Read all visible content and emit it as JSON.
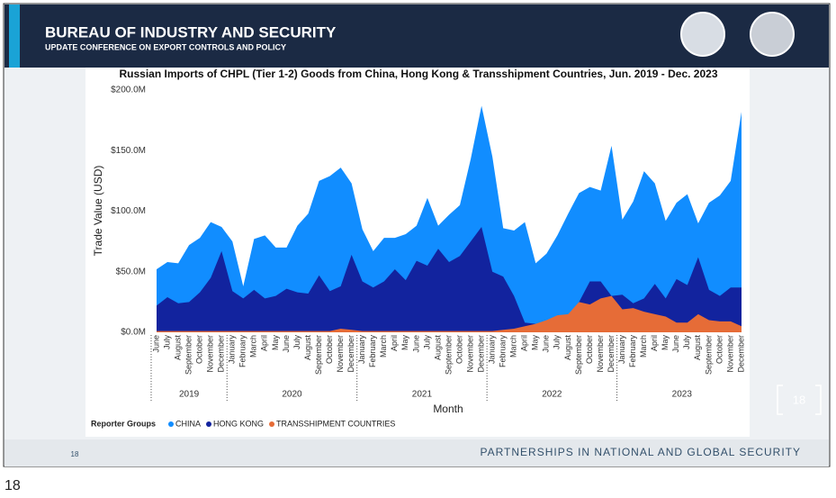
{
  "slide": {
    "header_title": "BUREAU OF INDUSTRY AND SECURITY",
    "header_subtitle": "UPDATE CONFERENCE ON EXPORT CONTROLS AND POLICY",
    "page_number": "18",
    "footer": "PARTNERSHIPS IN NATIONAL AND GLOBAL SECURITY",
    "badge": "18",
    "caption": "18"
  },
  "chart_data": {
    "type": "area",
    "title": "Russian Imports of CHPL (Tier 1-2) Goods from China, Hong Kong & Transshipment Countries, Jun. 2019 - Dec. 2023",
    "x_label": "Month",
    "y_label": "Trade Value (USD)",
    "legend_title": "Reporter Groups",
    "categories": [
      {
        "year": "2019",
        "month": "June"
      },
      {
        "year": "2019",
        "month": "July"
      },
      {
        "year": "2019",
        "month": "August"
      },
      {
        "year": "2019",
        "month": "September"
      },
      {
        "year": "2019",
        "month": "October"
      },
      {
        "year": "2019",
        "month": "November"
      },
      {
        "year": "2019",
        "month": "December"
      },
      {
        "year": "2020",
        "month": "January"
      },
      {
        "year": "2020",
        "month": "February"
      },
      {
        "year": "2020",
        "month": "March"
      },
      {
        "year": "2020",
        "month": "April"
      },
      {
        "year": "2020",
        "month": "May"
      },
      {
        "year": "2020",
        "month": "June"
      },
      {
        "year": "2020",
        "month": "July"
      },
      {
        "year": "2020",
        "month": "August"
      },
      {
        "year": "2020",
        "month": "September"
      },
      {
        "year": "2020",
        "month": "October"
      },
      {
        "year": "2020",
        "month": "November"
      },
      {
        "year": "2020",
        "month": "December"
      },
      {
        "year": "2021",
        "month": "January"
      },
      {
        "year": "2021",
        "month": "February"
      },
      {
        "year": "2021",
        "month": "March"
      },
      {
        "year": "2021",
        "month": "April"
      },
      {
        "year": "2021",
        "month": "May"
      },
      {
        "year": "2021",
        "month": "June"
      },
      {
        "year": "2021",
        "month": "July"
      },
      {
        "year": "2021",
        "month": "August"
      },
      {
        "year": "2021",
        "month": "September"
      },
      {
        "year": "2021",
        "month": "October"
      },
      {
        "year": "2021",
        "month": "November"
      },
      {
        "year": "2021",
        "month": "December"
      },
      {
        "year": "2022",
        "month": "January"
      },
      {
        "year": "2022",
        "month": "February"
      },
      {
        "year": "2022",
        "month": "March"
      },
      {
        "year": "2022",
        "month": "April"
      },
      {
        "year": "2022",
        "month": "May"
      },
      {
        "year": "2022",
        "month": "June"
      },
      {
        "year": "2022",
        "month": "July"
      },
      {
        "year": "2022",
        "month": "August"
      },
      {
        "year": "2022",
        "month": "September"
      },
      {
        "year": "2022",
        "month": "October"
      },
      {
        "year": "2022",
        "month": "November"
      },
      {
        "year": "2022",
        "month": "December"
      },
      {
        "year": "2023",
        "month": "January"
      },
      {
        "year": "2023",
        "month": "February"
      },
      {
        "year": "2023",
        "month": "March"
      },
      {
        "year": "2023",
        "month": "April"
      },
      {
        "year": "2023",
        "month": "May"
      },
      {
        "year": "2023",
        "month": "June"
      },
      {
        "year": "2023",
        "month": "July"
      },
      {
        "year": "2023",
        "month": "August"
      },
      {
        "year": "2023",
        "month": "September"
      },
      {
        "year": "2023",
        "month": "October"
      },
      {
        "year": "2023",
        "month": "November"
      },
      {
        "year": "2023",
        "month": "December"
      }
    ],
    "series": [
      {
        "name": "CHINA",
        "color": "#118dff",
        "values": [
          52,
          58,
          57,
          72,
          78,
          91,
          87,
          75,
          38,
          77,
          80,
          70,
          70,
          88,
          98,
          125,
          129,
          136,
          123,
          85,
          67,
          78,
          78,
          81,
          88,
          111,
          88,
          97,
          105,
          143,
          187,
          145,
          86,
          84,
          91,
          57,
          65,
          80,
          98,
          115,
          120,
          117,
          154,
          93,
          108,
          133,
          123,
          92,
          107,
          114,
          90,
          107,
          113,
          125,
          182
        ]
      },
      {
        "name": "HONG KONG",
        "color": "#12239e",
        "values": [
          22,
          29,
          24,
          25,
          33,
          45,
          67,
          34,
          28,
          35,
          28,
          30,
          36,
          33,
          32,
          47,
          34,
          38,
          64,
          42,
          37,
          42,
          52,
          43,
          59,
          55,
          69,
          58,
          63,
          75,
          87,
          50,
          46,
          30,
          8,
          7,
          8,
          9,
          13,
          25,
          42,
          42,
          30,
          31,
          24,
          28,
          40,
          28,
          44,
          39,
          62,
          35,
          30,
          37,
          37
        ]
      },
      {
        "name": "TRANSSHIPMENT COUNTRIES",
        "color": "#e66c37",
        "values": [
          1,
          1,
          1,
          1,
          1,
          1,
          1,
          1,
          1,
          1,
          1,
          1,
          1,
          1,
          1,
          1,
          1,
          3,
          2,
          1,
          1,
          1,
          1,
          1,
          1,
          1,
          1,
          1,
          1,
          1,
          1,
          1,
          2,
          3,
          5,
          7,
          10,
          14,
          15,
          25,
          23,
          28,
          30,
          19,
          20,
          17,
          15,
          13,
          8,
          8,
          15,
          10,
          9,
          9,
          5
        ]
      }
    ],
    "ylim": [
      0,
      200
    ],
    "yticks": [
      {
        "value": 0,
        "label": "$0.0M"
      },
      {
        "value": 50,
        "label": "$50.0M"
      },
      {
        "value": 100,
        "label": "$100.0M"
      },
      {
        "value": 150,
        "label": "$150.0M"
      },
      {
        "value": 200,
        "label": "$200.0M"
      }
    ]
  }
}
